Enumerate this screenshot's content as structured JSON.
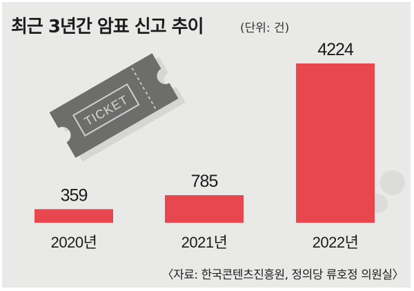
{
  "chart_data": {
    "type": "bar",
    "title": "최근 3년간 암표 신고 추이",
    "unit_note": "(단위: 건)",
    "categories": [
      "2020년",
      "2021년",
      "2022년"
    ],
    "values": [
      359,
      785,
      4224
    ],
    "value_labels": [
      "359",
      "785",
      "4224"
    ],
    "ylim": [
      0,
      4224
    ],
    "grid": false,
    "bar_color": "#e8474f",
    "source": "〈자료: 한국콘텐츠진흥원, 정의당 류호정 의원실〉"
  },
  "ticket_text": "TICKET",
  "colors": {
    "background": "#e9e9e8",
    "bar": "#e8474f",
    "ticket": "#6d6e6c",
    "shadow": "#d6d6d5"
  }
}
